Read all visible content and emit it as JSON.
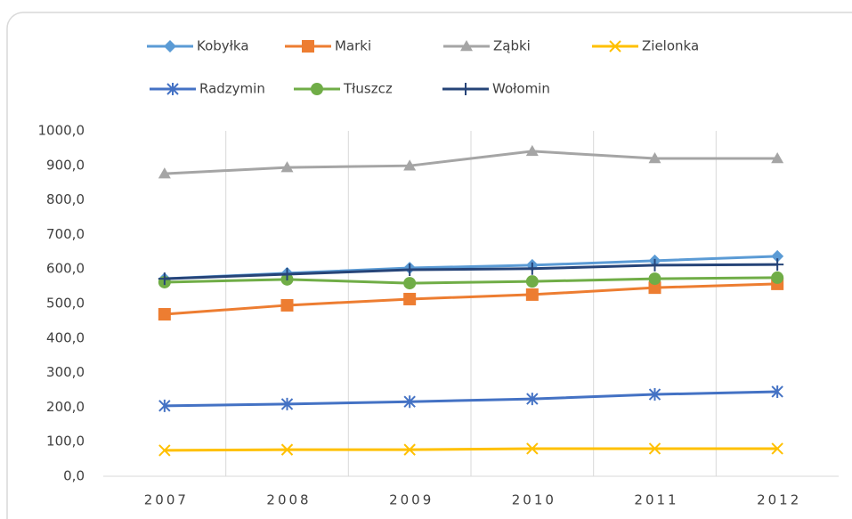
{
  "chart_data": {
    "type": "line",
    "categories": [
      "2007",
      "2008",
      "2009",
      "2010",
      "2011",
      "2012"
    ],
    "series": [
      {
        "name": "Kobyłka",
        "color": "#5b9bd5",
        "marker": "diamond",
        "values": [
          572,
          588,
          603,
          611,
          624,
          637
        ]
      },
      {
        "name": "Marki",
        "color": "#ed7d31",
        "marker": "square",
        "values": [
          469,
          495,
          513,
          526,
          546,
          557
        ]
      },
      {
        "name": "Ząbki",
        "color": "#a5a5a5",
        "marker": "triangle",
        "values": [
          876,
          894,
          899,
          941,
          920,
          920
        ]
      },
      {
        "name": "Zielonka",
        "color": "#ffc000",
        "marker": "x",
        "values": [
          75,
          77,
          77,
          80,
          80,
          80
        ]
      },
      {
        "name": "Radzymin",
        "color": "#4472c4",
        "marker": "star",
        "values": [
          204,
          209,
          216,
          224,
          237,
          245
        ]
      },
      {
        "name": "Tłuszcz",
        "color": "#70ad47",
        "marker": "circle",
        "values": [
          562,
          570,
          559,
          564,
          572,
          575
        ]
      },
      {
        "name": "Wołomin",
        "color": "#264478",
        "marker": "plus",
        "values": [
          572,
          585,
          598,
          601,
          611,
          613
        ]
      }
    ],
    "ylim": [
      0,
      1000
    ],
    "yticks": [
      {
        "value": 0,
        "label": "0,0"
      },
      {
        "value": 100,
        "label": "100,0"
      },
      {
        "value": 200,
        "label": "200,0"
      },
      {
        "value": 300,
        "label": "300,0"
      },
      {
        "value": 400,
        "label": "400,0"
      },
      {
        "value": 500,
        "label": "500,0"
      },
      {
        "value": 600,
        "label": "600,0"
      },
      {
        "value": 700,
        "label": "700,0"
      },
      {
        "value": 800,
        "label": "800,0"
      },
      {
        "value": 900,
        "label": "900,0"
      },
      {
        "value": 1000,
        "label": "1000,0"
      }
    ],
    "grid": "x",
    "legend": "top"
  }
}
